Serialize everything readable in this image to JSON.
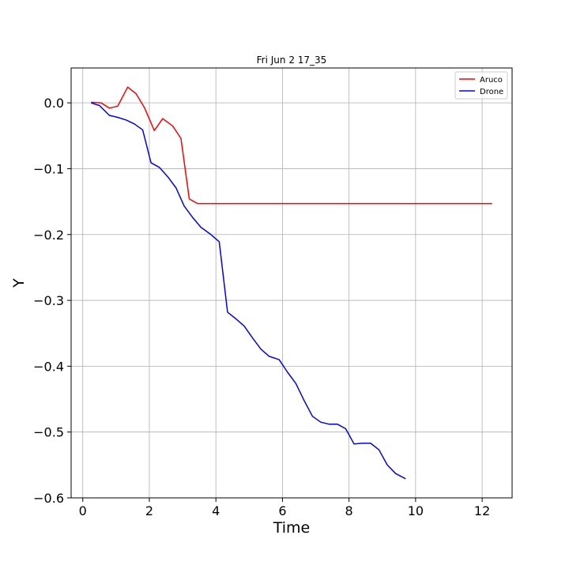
{
  "chart_data": {
    "type": "line",
    "title": "Fri Jun  2 17_35",
    "xlabel": "Time",
    "ylabel": "Y",
    "xlim": [
      -0.35,
      12.9
    ],
    "ylim": [
      -0.6,
      0.053
    ],
    "xticks": [
      0,
      2,
      4,
      6,
      8,
      10,
      12
    ],
    "yticks": [
      0.0,
      -0.1,
      -0.2,
      -0.3,
      -0.4,
      -0.5,
      -0.6
    ],
    "ytick_labels": [
      "0.0",
      "−0.1",
      "−0.2",
      "−0.3",
      "−0.4",
      "−0.5",
      "−0.6"
    ],
    "grid": true,
    "legend_position": "top-right",
    "series": [
      {
        "name": "Aruco",
        "color": "#ff0000",
        "points": [
          [
            0.25,
            0.001
          ],
          [
            0.55,
            0.0
          ],
          [
            0.8,
            -0.008
          ],
          [
            1.05,
            -0.005
          ],
          [
            1.35,
            0.024
          ],
          [
            1.6,
            0.014
          ],
          [
            1.85,
            -0.007
          ],
          [
            2.15,
            -0.042
          ],
          [
            2.4,
            -0.024
          ],
          [
            2.7,
            -0.035
          ],
          [
            2.95,
            -0.054
          ],
          [
            3.2,
            -0.146
          ],
          [
            3.45,
            -0.153
          ],
          [
            4.0,
            -0.153
          ],
          [
            6.0,
            -0.153
          ],
          [
            8.0,
            -0.153
          ],
          [
            10.0,
            -0.153
          ],
          [
            12.3,
            -0.153
          ]
        ]
      },
      {
        "name": "Drone",
        "color": "#0000ff",
        "points": [
          [
            0.25,
            0.0
          ],
          [
            0.5,
            -0.004
          ],
          [
            0.8,
            -0.019
          ],
          [
            1.05,
            -0.022
          ],
          [
            1.3,
            -0.026
          ],
          [
            1.55,
            -0.032
          ],
          [
            1.8,
            -0.041
          ],
          [
            2.05,
            -0.091
          ],
          [
            2.3,
            -0.098
          ],
          [
            2.55,
            -0.112
          ],
          [
            2.8,
            -0.129
          ],
          [
            3.05,
            -0.157
          ],
          [
            3.3,
            -0.174
          ],
          [
            3.55,
            -0.189
          ],
          [
            3.85,
            -0.2
          ],
          [
            4.1,
            -0.211
          ],
          [
            4.35,
            -0.318
          ],
          [
            4.6,
            -0.328
          ],
          [
            4.85,
            -0.339
          ],
          [
            5.1,
            -0.357
          ],
          [
            5.35,
            -0.374
          ],
          [
            5.6,
            -0.385
          ],
          [
            5.9,
            -0.39
          ],
          [
            6.15,
            -0.409
          ],
          [
            6.4,
            -0.426
          ],
          [
            6.65,
            -0.452
          ],
          [
            6.9,
            -0.476
          ],
          [
            7.15,
            -0.485
          ],
          [
            7.4,
            -0.488
          ],
          [
            7.65,
            -0.488
          ],
          [
            7.9,
            -0.495
          ],
          [
            8.15,
            -0.518
          ],
          [
            8.4,
            -0.517
          ],
          [
            8.65,
            -0.517
          ],
          [
            8.9,
            -0.527
          ],
          [
            9.15,
            -0.55
          ],
          [
            9.4,
            -0.563
          ],
          [
            9.7,
            -0.571
          ]
        ]
      }
    ]
  }
}
